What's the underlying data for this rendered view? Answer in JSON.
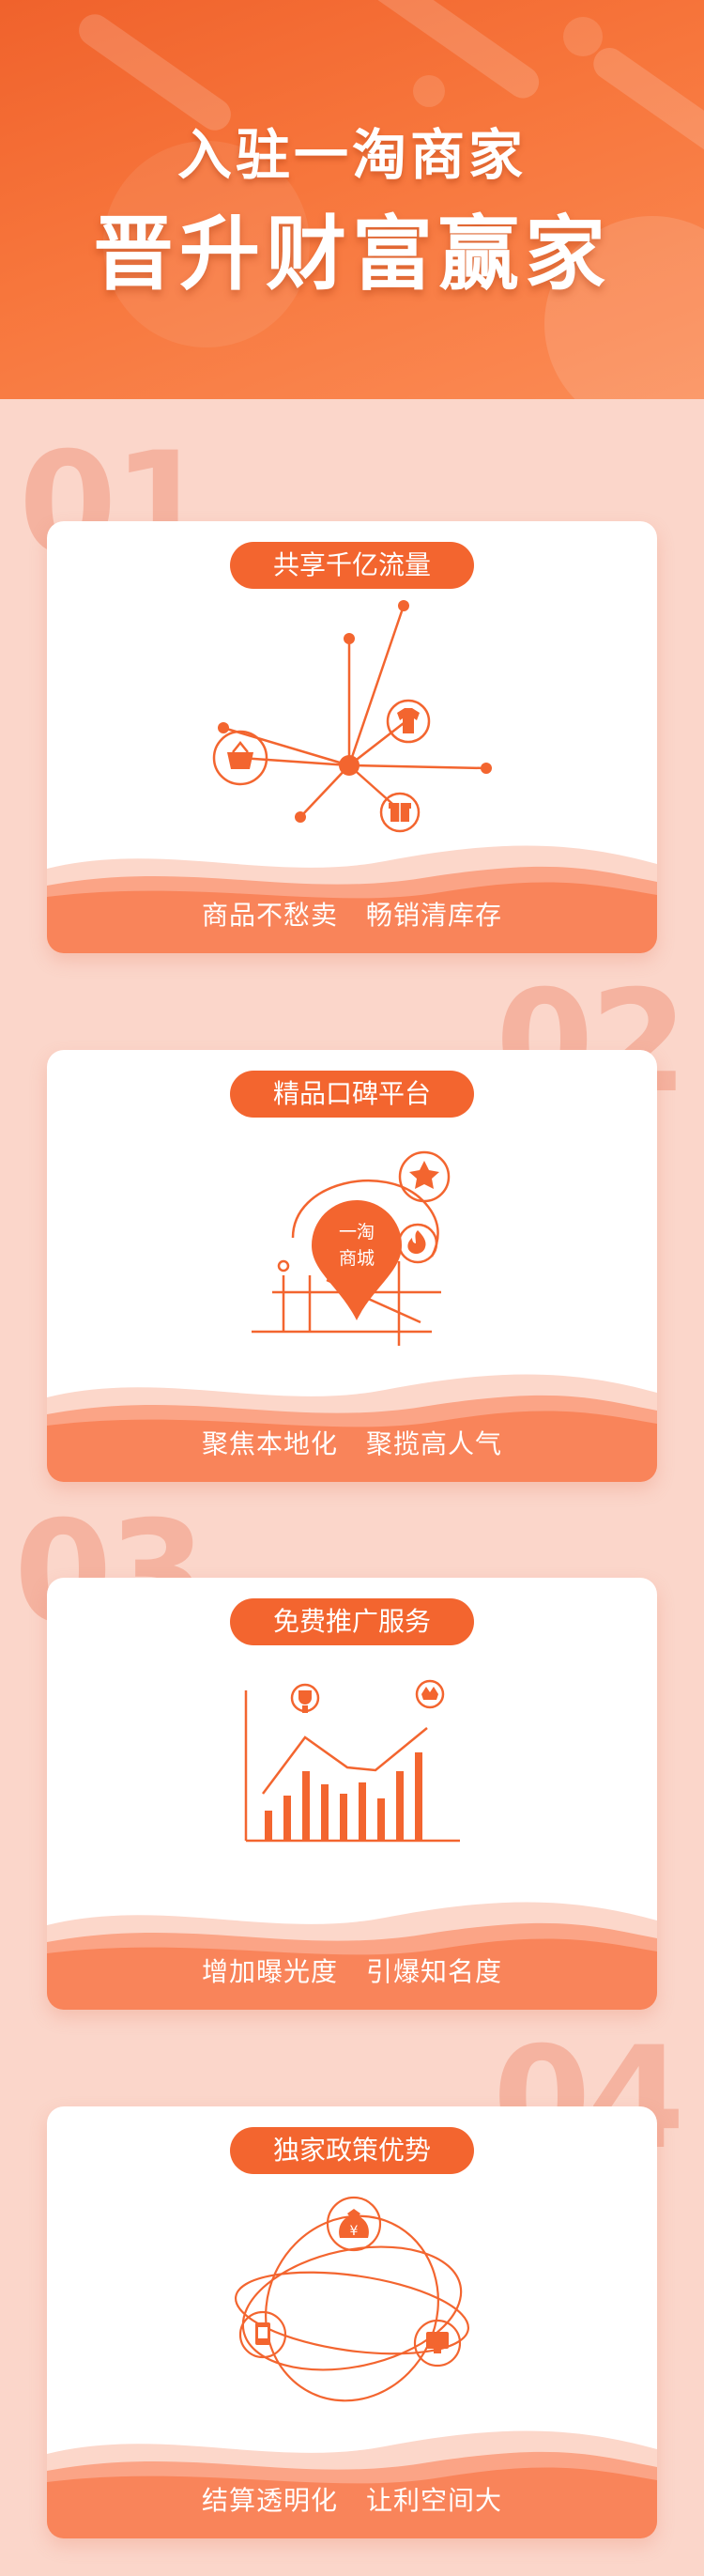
{
  "header": {
    "line1": "入驻一淘商家",
    "line2": "晋升财富赢家"
  },
  "sections": [
    {
      "number": "01",
      "title": "共享千亿流量",
      "caption_left": "商品不愁卖",
      "caption_right": "畅销清库存",
      "icon": "traffic-network-icon"
    },
    {
      "number": "02",
      "title": "精品口碑平台",
      "caption_left": "聚焦本地化",
      "caption_right": "聚揽高人气",
      "icon": "map-pin-icon",
      "pin_text_1": "一淘",
      "pin_text_2": "商城"
    },
    {
      "number": "03",
      "title": "免费推广服务",
      "caption_left": "增加曝光度",
      "caption_right": "引爆知名度",
      "icon": "bar-growth-icon"
    },
    {
      "number": "04",
      "title": "独家政策优势",
      "caption_left": "结算透明化",
      "caption_right": "让利空间大",
      "icon": "money-orbit-icon",
      "coin_symbol": "¥"
    }
  ],
  "colors": {
    "accent": "#f3652f",
    "background": "#fbd6ca",
    "number": "#f5b3a0"
  }
}
